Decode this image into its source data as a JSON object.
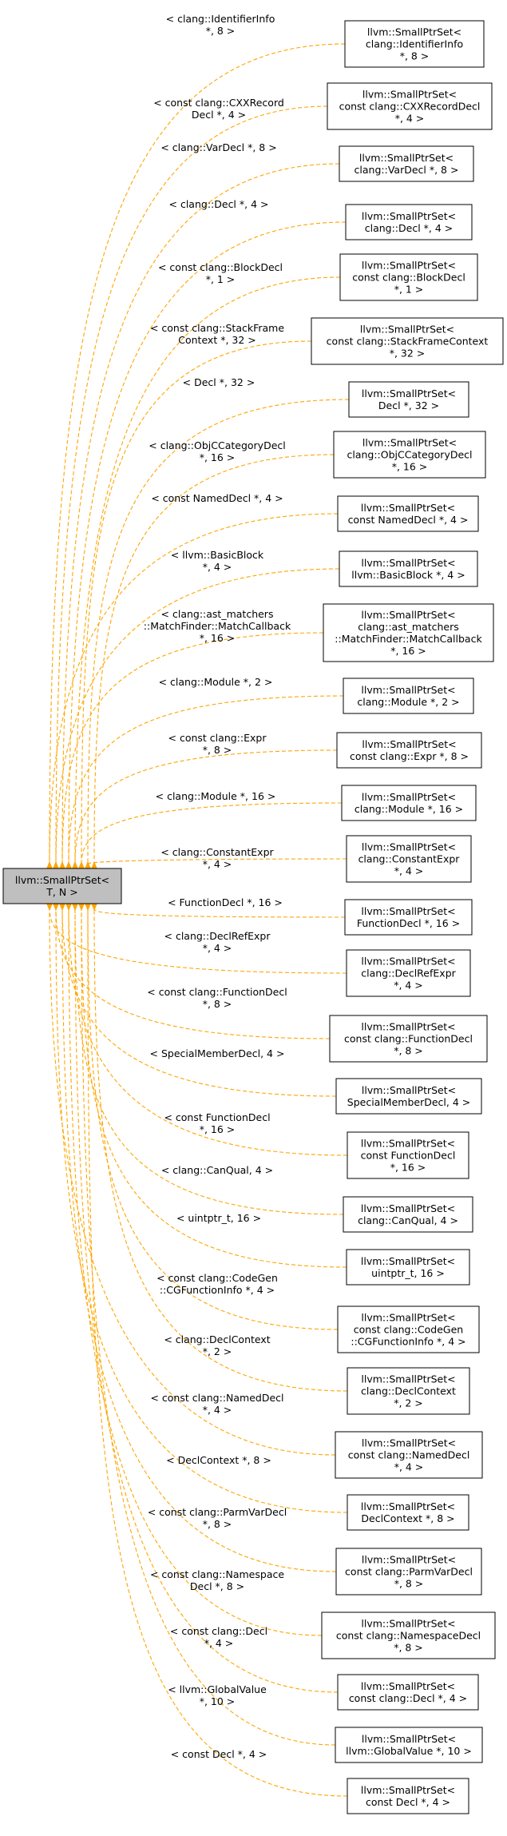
{
  "base_node": {
    "lines": [
      "llvm::SmallPtrSet<",
      "T, N >"
    ]
  },
  "edge_color": "#ffa500",
  "nodes": [
    {
      "lines": [
        "llvm::SmallPtrSet<",
        "clang::IdentifierInfo",
        "*, 8 >"
      ],
      "label": [
        "< clang::IdentifierInfo",
        "*, 8 >"
      ]
    },
    {
      "lines": [
        "llvm::SmallPtrSet<",
        "const clang::CXXRecordDecl",
        "*, 4 >"
      ],
      "label": [
        "< const clang::CXXRecord",
        "Decl *, 4 >"
      ]
    },
    {
      "lines": [
        "llvm::SmallPtrSet<",
        "clang::VarDecl *, 8 >"
      ],
      "label": [
        "< clang::VarDecl *, 8 >"
      ]
    },
    {
      "lines": [
        "llvm::SmallPtrSet<",
        "clang::Decl *, 4 >"
      ],
      "label": [
        "< clang::Decl *, 4 >"
      ]
    },
    {
      "lines": [
        "llvm::SmallPtrSet<",
        "const clang::BlockDecl",
        "*, 1 >"
      ],
      "label": [
        "< const clang::BlockDecl",
        "*, 1 >"
      ]
    },
    {
      "lines": [
        "llvm::SmallPtrSet<",
        "const clang::StackFrameContext",
        "*, 32 >"
      ],
      "label": [
        "< const clang::StackFrame",
        "Context *, 32 >"
      ]
    },
    {
      "lines": [
        "llvm::SmallPtrSet<",
        "Decl *, 32 >"
      ],
      "label": [
        "< Decl *, 32 >"
      ]
    },
    {
      "lines": [
        "llvm::SmallPtrSet<",
        "clang::ObjCCategoryDecl",
        "*, 16 >"
      ],
      "label": [
        "< clang::ObjCCategoryDecl",
        "*, 16 >"
      ]
    },
    {
      "lines": [
        "llvm::SmallPtrSet<",
        "const NamedDecl *, 4 >"
      ],
      "label": [
        "< const NamedDecl *, 4 >"
      ]
    },
    {
      "lines": [
        "llvm::SmallPtrSet<",
        "llvm::BasicBlock *, 4 >"
      ],
      "label": [
        "< llvm::BasicBlock",
        "*, 4 >"
      ]
    },
    {
      "lines": [
        "llvm::SmallPtrSet<",
        "clang::ast_matchers",
        "::MatchFinder::MatchCallback",
        "*, 16 >"
      ],
      "label": [
        "< clang::ast_matchers",
        "::MatchFinder::MatchCallback",
        "*, 16 >"
      ]
    },
    {
      "lines": [
        "llvm::SmallPtrSet<",
        "clang::Module *, 2 >"
      ],
      "label": [
        "< clang::Module *, 2 >"
      ]
    },
    {
      "lines": [
        "llvm::SmallPtrSet<",
        "const clang::Expr *, 8 >"
      ],
      "label": [
        "< const clang::Expr",
        "*, 8 >"
      ]
    },
    {
      "lines": [
        "llvm::SmallPtrSet<",
        "clang::Module *, 16 >"
      ],
      "label": [
        "< clang::Module *, 16 >"
      ]
    },
    {
      "lines": [
        "llvm::SmallPtrSet<",
        "clang::ConstantExpr",
        "*, 4 >"
      ],
      "label": [
        "< clang::ConstantExpr",
        "*, 4 >"
      ]
    },
    {
      "lines": [
        "llvm::SmallPtrSet<",
        "FunctionDecl *, 16 >"
      ],
      "label": [
        "< FunctionDecl *, 16 >"
      ]
    },
    {
      "lines": [
        "llvm::SmallPtrSet<",
        "clang::DeclRefExpr",
        "*, 4 >"
      ],
      "label": [
        "< clang::DeclRefExpr",
        "*, 4 >"
      ]
    },
    {
      "lines": [
        "llvm::SmallPtrSet<",
        "const clang::FunctionDecl",
        "*, 8 >"
      ],
      "label": [
        "< const clang::FunctionDecl",
        "*, 8 >"
      ]
    },
    {
      "lines": [
        "llvm::SmallPtrSet<",
        "SpecialMemberDecl, 4 >"
      ],
      "label": [
        "< SpecialMemberDecl, 4 >"
      ]
    },
    {
      "lines": [
        "llvm::SmallPtrSet<",
        "const FunctionDecl",
        "*, 16 >"
      ],
      "label": [
        "< const FunctionDecl",
        "*, 16 >"
      ]
    },
    {
      "lines": [
        "llvm::SmallPtrSet<",
        "clang::CanQual, 4 >"
      ],
      "label": [
        "< clang::CanQual, 4 >"
      ]
    },
    {
      "lines": [
        "llvm::SmallPtrSet<",
        "uintptr_t, 16 >"
      ],
      "label": [
        "< uintptr_t, 16 >"
      ]
    },
    {
      "lines": [
        "llvm::SmallPtrSet<",
        "const clang::CodeGen",
        "::CGFunctionInfo *, 4 >"
      ],
      "label": [
        "< const clang::CodeGen",
        "::CGFunctionInfo *, 4 >"
      ]
    },
    {
      "lines": [
        "llvm::SmallPtrSet<",
        "clang::DeclContext",
        "*, 2 >"
      ],
      "label": [
        "< clang::DeclContext",
        "*, 2 >"
      ]
    },
    {
      "lines": [
        "llvm::SmallPtrSet<",
        "const clang::NamedDecl",
        "*, 4 >"
      ],
      "label": [
        "< const clang::NamedDecl",
        "*, 4 >"
      ]
    },
    {
      "lines": [
        "llvm::SmallPtrSet<",
        "DeclContext *, 8 >"
      ],
      "label": [
        "< DeclContext *, 8 >"
      ]
    },
    {
      "lines": [
        "llvm::SmallPtrSet<",
        "const clang::ParmVarDecl",
        "*, 8 >"
      ],
      "label": [
        "< const clang::ParmVarDecl",
        "*, 8 >"
      ]
    },
    {
      "lines": [
        "llvm::SmallPtrSet<",
        "const clang::NamespaceDecl",
        "*, 8 >"
      ],
      "label": [
        "< const clang::Namespace",
        "Decl *, 8 >"
      ]
    },
    {
      "lines": [
        "llvm::SmallPtrSet<",
        "const clang::Decl *, 4 >"
      ],
      "label": [
        "< const clang::Decl",
        "*, 4 >"
      ]
    },
    {
      "lines": [
        "llvm::SmallPtrSet<",
        "llvm::GlobalValue *, 10 >"
      ],
      "label": [
        "< llvm::GlobalValue",
        "*, 10 >"
      ]
    },
    {
      "lines": [
        "llvm::SmallPtrSet<",
        "const Decl *, 4 >"
      ],
      "label": [
        "< const Decl *, 4 >"
      ]
    }
  ]
}
